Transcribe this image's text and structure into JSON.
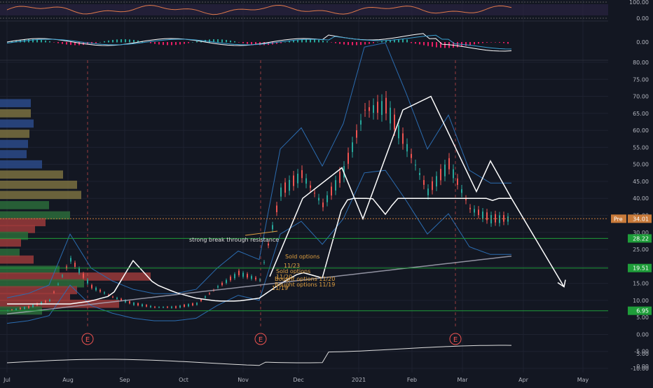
{
  "chart_data": {
    "type": "line",
    "subtype": "candlestick-with-indicators",
    "title": "",
    "x_ticks": [
      "Jul",
      "Aug",
      "Sep",
      "Oct",
      "Nov",
      "Dec",
      "2021",
      "Feb",
      "Mar",
      "Apr",
      "May"
    ],
    "price_axis": {
      "ticks": [
        "80.00",
        "75.00",
        "70.00",
        "65.00",
        "60.00",
        "55.00",
        "50.00",
        "45.00",
        "40.00",
        "35.00",
        "30.00",
        "25.00",
        "20.00",
        "15.00",
        "10.00",
        "5.00",
        "0.00",
        "-5.00",
        "-10.00"
      ],
      "range": [
        -10,
        80
      ]
    },
    "rsi_axis": {
      "ticks": [
        "100.00",
        "0.00"
      ],
      "range": [
        0,
        100
      ]
    },
    "macd_axis": {
      "ticks": [
        "0.00"
      ]
    },
    "volume_axis": {
      "ticks": [
        "5.00",
        "0.00"
      ],
      "range": [
        0,
        10
      ]
    },
    "price_labels": [
      {
        "label": "Pre",
        "value": 34.01,
        "text": "34.01",
        "color": "#c87a3a"
      },
      {
        "label": "",
        "value": 28.22,
        "text": "28.22",
        "color": "#1f9d3a"
      },
      {
        "label": "",
        "value": 19.51,
        "text": "19.51",
        "color": "#1f9d3a"
      },
      {
        "label": "",
        "value": 6.95,
        "text": "6.95",
        "color": "#1f9d3a"
      }
    ],
    "support_lines": [
      28.22,
      19.51,
      6.95
    ],
    "earnings_markers": [
      {
        "date": "Aug",
        "label": "E"
      },
      {
        "date": "Nov",
        "label": "E"
      },
      {
        "date": "Mar",
        "label": "E"
      }
    ],
    "annotations": [
      {
        "text": "strong break through resistance",
        "color": "#dddddd"
      },
      {
        "text": "Sold options",
        "color": "#e0a040"
      },
      {
        "text": "11/23",
        "color": "#e0a040"
      },
      {
        "text": "Sold options",
        "color": "#e0a040"
      },
      {
        "text": "11/20",
        "color": "#e0a040"
      },
      {
        "text": "Bought options 11/20",
        "color": "#e0a040"
      },
      {
        "text": "Bought options 11/19",
        "color": "#e0a040"
      },
      {
        "text": "11/19",
        "color": "#e0a040"
      }
    ],
    "price_series": {
      "dates_index": [
        0,
        10,
        20,
        30,
        40,
        50,
        60,
        70,
        80,
        90,
        100,
        110,
        120,
        130,
        140,
        150,
        160,
        170,
        180,
        190,
        200,
        210,
        220,
        230,
        240
      ],
      "close": [
        7,
        8,
        10,
        22,
        14,
        11,
        9,
        8,
        8,
        9,
        14,
        18,
        16,
        42,
        47,
        38,
        48,
        66,
        67,
        55,
        42,
        50,
        37,
        34,
        34
      ]
    },
    "colors": {
      "background": "#131722",
      "up": "#26a69a",
      "down": "#ef5350",
      "ma_white": "#ffffff",
      "ma_gray": "#b0b0c0",
      "bollinger": "#2b6cb0",
      "support": "#1f9d3a",
      "pattern": "#ffffff"
    }
  }
}
